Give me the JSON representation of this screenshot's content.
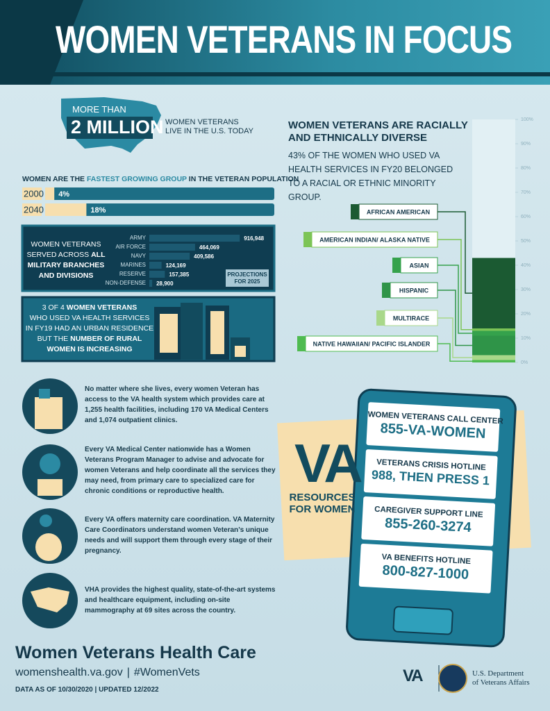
{
  "header": {
    "title": "WOMEN VETERANS IN FOCUS"
  },
  "hero": {
    "prefix": "MORE THAN",
    "number": "2 MILLION",
    "caption_line1": "WOMEN VETERANS",
    "caption_line2": "LIVE IN THE U.S. TODAY"
  },
  "growth_title": {
    "before": "WOMEN ARE THE",
    "highlight": "FASTEST GROWING GROUP",
    "after": "IN THE VETERAN POPULATION"
  },
  "branches_text": {
    "line1": "WOMEN VETERANS",
    "line2_normal": "SERVED ACROSS",
    "line2_bold": "ALL",
    "line3": "MILITARY BRANCHES",
    "line4": "AND DIVISIONS",
    "projection_line1": "PROJECTIONS",
    "projection_line2": "FOR 2025"
  },
  "urban": [
    "3 OF 4",
    "WOMEN VETERANS",
    "WHO USED VA HEALTH SERVICES",
    "IN FY19 HAD AN URBAN RESIDENCE",
    "BUT THE",
    "NUMBER OF RURAL",
    "WOMEN IS INCREASING"
  ],
  "chart_data": [
    {
      "type": "hbar",
      "categories": [
        "2000",
        "2040"
      ],
      "values": [
        4,
        18
      ],
      "value_labels": [
        "4%",
        "18%"
      ],
      "xlim": [
        0,
        100
      ],
      "color": "#f7dfae",
      "track_color": "#1d6e85"
    },
    {
      "type": "hbar",
      "categories": [
        "ARMY",
        "AIR FORCE",
        "NAVY",
        "MARINES",
        "RESERVE",
        "NON-DEFENSE"
      ],
      "values": [
        916948,
        464069,
        409586,
        124169,
        157385,
        28900
      ],
      "value_labels": [
        "916,948",
        "464,069",
        "409,586",
        "124,169",
        "157,385",
        "28,900"
      ],
      "xlim": [
        0,
        1000000
      ],
      "color": "#1c5a72"
    },
    {
      "type": "stacked_bar",
      "title": "WOMEN VETERANS ARE RACIALLY AND ETHNICALLY DIVERSE",
      "subtitle": "43% OF THE WOMEN WHO USED VA HEALTH SERVICES IN FY20 BELONGED TO A RACIAL OR ETHNIC MINORITY GROUP.",
      "series": [
        {
          "name": "AFRICAN AMERICAN",
          "color": "#1b5a32",
          "values": [
            29
          ]
        },
        {
          "name": "AMERICAN INDIAN/ ALASKA NATIVE",
          "color": "#7cc456",
          "values": [
            1
          ]
        },
        {
          "name": "ASIAN",
          "color": "#35a24c",
          "values": [
            2
          ]
        },
        {
          "name": "HISPANIC",
          "color": "#2f9448",
          "values": [
            8
          ]
        },
        {
          "name": "MULTIRACE",
          "color": "#a9d88a",
          "values": [
            2
          ]
        },
        {
          "name": "NATIVE HAWAIIAN/ PACIFIC ISLANDER",
          "color": "#4fbb50",
          "values": [
            1
          ]
        }
      ],
      "ylim": [
        0,
        100
      ],
      "yticks": [
        {
          "value": 0,
          "label": "0%"
        },
        {
          "value": 10,
          "label": "10%"
        },
        {
          "value": 20,
          "label": "20%"
        },
        {
          "value": 30,
          "label": "30%"
        },
        {
          "value": 40,
          "label": "40%"
        },
        {
          "value": 50,
          "label": "50%"
        },
        {
          "value": 60,
          "label": "60%"
        },
        {
          "value": 70,
          "label": "70%"
        },
        {
          "value": 80,
          "label": "80%"
        },
        {
          "value": 90,
          "label": "90%"
        },
        {
          "value": 100,
          "label": "100%"
        }
      ]
    }
  ],
  "info": [
    "No matter where she lives, every women Veteran has access to the VA health system which provides care at 1,255 health facilities, including 170 VA Medical Centers and 1,074 outpatient clinics.",
    "Every VA Medical Center nationwide has a Women Veterans Program Manager to advise and advocate for women Veterans and help coordinate all the services they may need, from primary care to specialized care for chronic conditions or reproductive health.",
    "Every VA offers maternity care coordination. VA Maternity Care Coordinators understand women Veteran’s unique needs and will support them through every stage of their pregnancy.",
    "VHA provides the highest quality, state-of-the-art systems and healthcare equipment, including on-site mammography at 69 sites across the country."
  ],
  "resources": {
    "logo": "VA",
    "title": "RESOURCES FOR WOMEN",
    "lines": [
      {
        "label": "WOMEN VETERANS CALL CENTER",
        "number": "855-VA-WOMEN"
      },
      {
        "label": "VETERANS CRISIS HOTLINE",
        "number": "988, THEN PRESS 1"
      },
      {
        "label": "CAREGIVER SUPPORT LINE",
        "number": "855-260-3274"
      },
      {
        "label": "VA BENEFITS HOTLINE",
        "number": "800-827-1000"
      }
    ]
  },
  "footer": {
    "title": "Women Veterans Health Care",
    "url": "womenshealth.va.gov",
    "hashtag": "#WomenVets",
    "date": "DATA AS OF 10/30/2020 | UPDATED 12/2022",
    "logo": "VA",
    "dept_line1": "U.S. Department",
    "dept_line2": "of Veterans Affairs"
  }
}
